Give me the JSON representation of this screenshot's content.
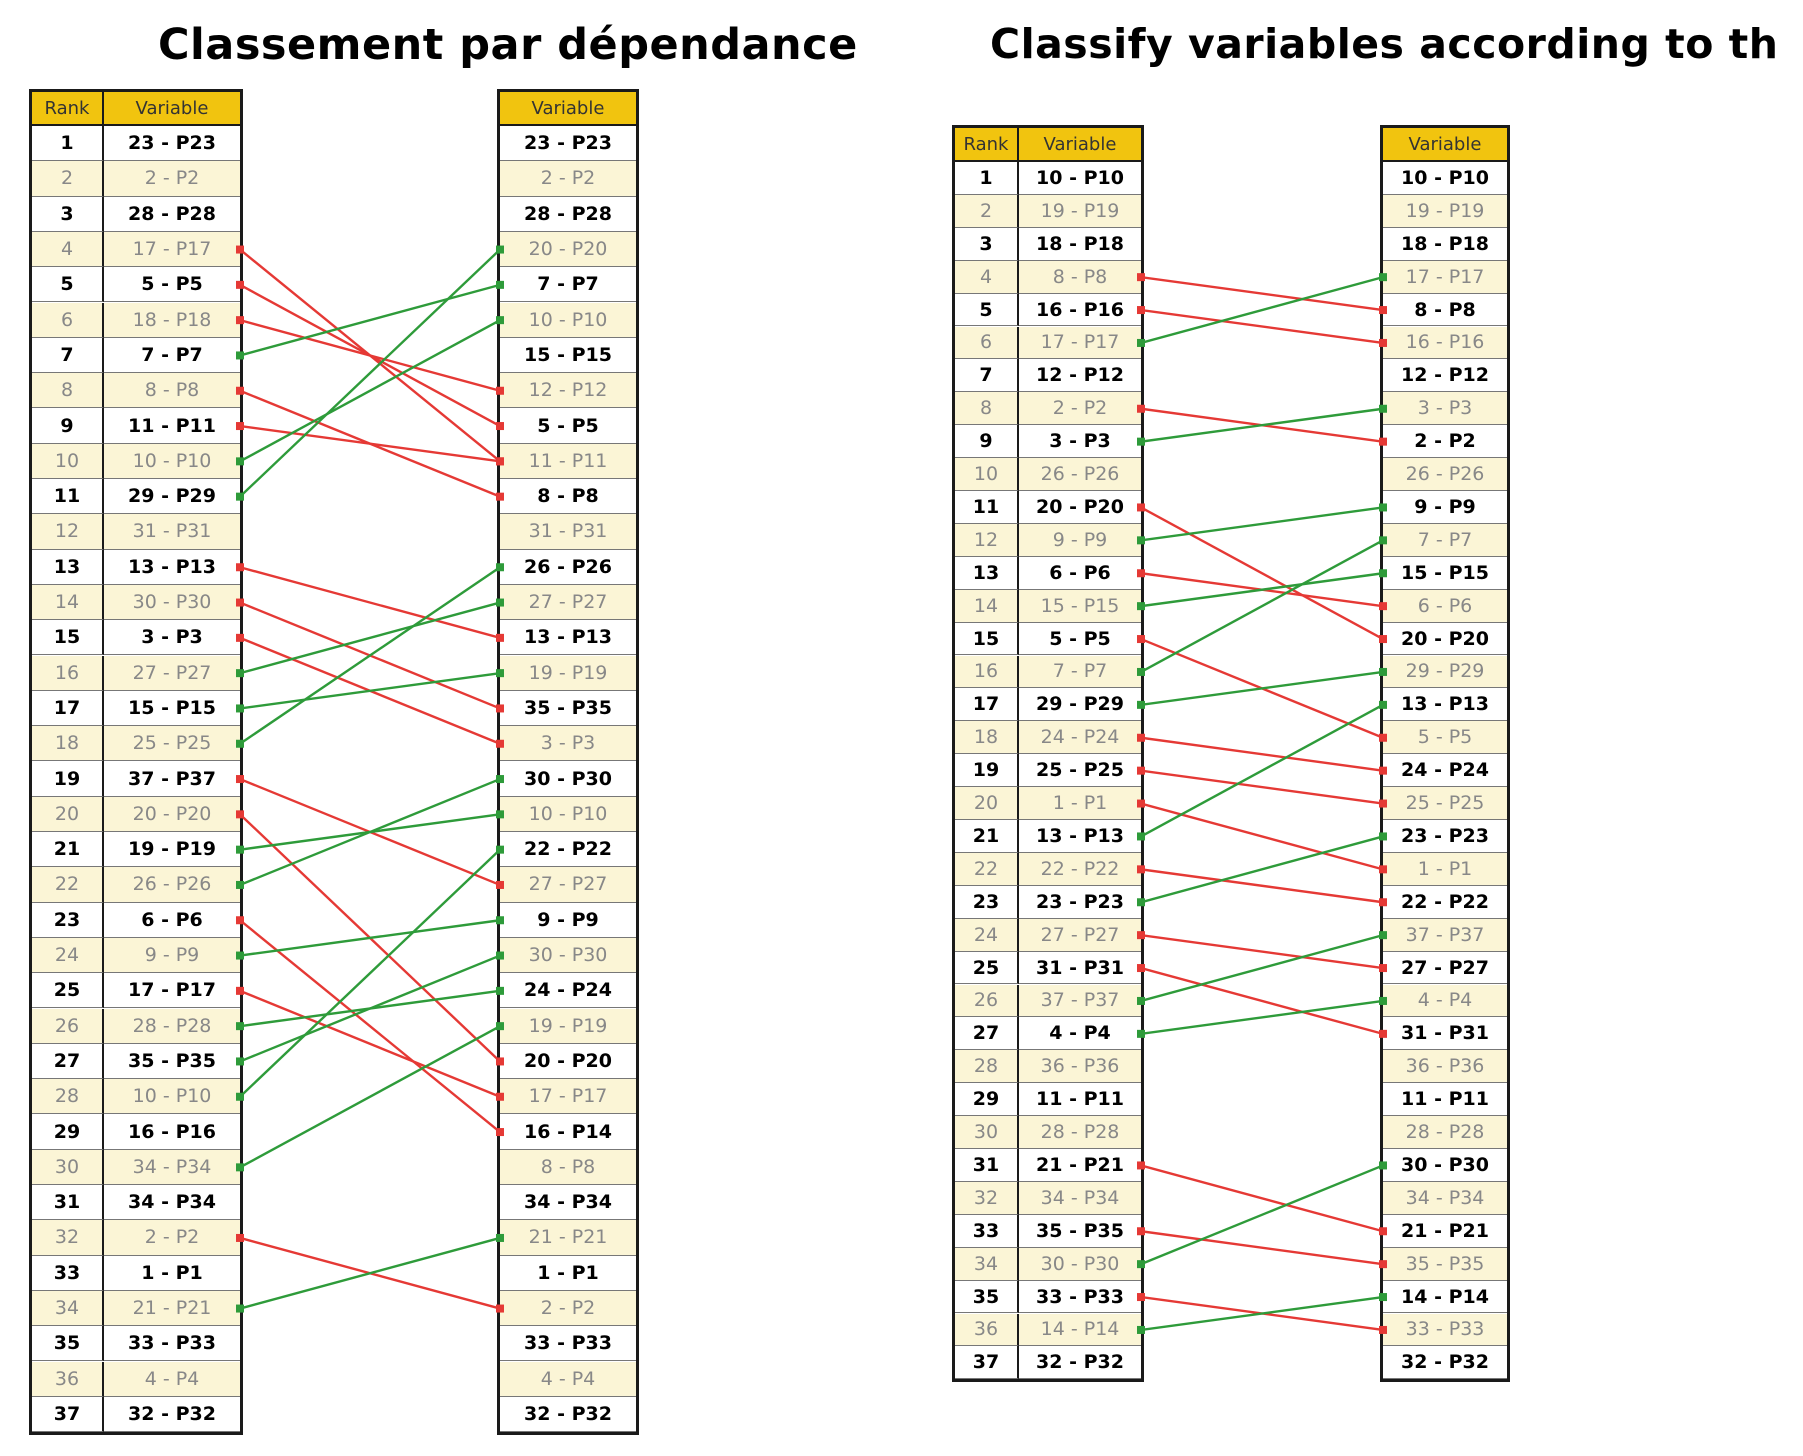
{
  "titles": {
    "left": "Classement par dépendance",
    "right": "Classify variables according to th"
  },
  "colors": {
    "header": "#f1c40f",
    "rising": "#2e9b3a",
    "falling": "#e53935"
  },
  "left_panel": {
    "rank_header": "Rank",
    "variable_header": "Variable",
    "right_variable_header": "Variable",
    "ranks": [
      "1",
      "2",
      "3",
      "4",
      "5",
      "6",
      "7",
      "8",
      "9",
      "10",
      "11",
      "12",
      "13",
      "14",
      "15",
      "16",
      "17",
      "18",
      "19",
      "20",
      "21",
      "22",
      "23",
      "24",
      "25",
      "26",
      "27",
      "28",
      "29",
      "30",
      "31",
      "32",
      "33",
      "34",
      "35",
      "36",
      "37"
    ],
    "variables": [
      "23 - P23",
      "2 - P2",
      "28 - P28",
      "17 - P17",
      "5 - P5",
      "18 - P18",
      "7 - P7",
      "8 - P8",
      "11 - P11",
      "10 - P10",
      "29 - P29",
      "31 - P31",
      "13 - P13",
      "30 - P30",
      "3 - P3",
      "27 - P27",
      "15 - P15",
      "25 - P25",
      "37 - P37",
      "20 - P20",
      "19 - P19",
      "26 - P26",
      "6 - P6",
      "9 - P9",
      "17 - P17",
      "28 - P28",
      "35 - P35",
      "10 - P10",
      "16 - P16",
      "34 - P34",
      "34 - P34",
      "2 - P2",
      "1 - P1",
      "21 - P21",
      "33 - P33",
      "4 - P4",
      "32 - P32"
    ],
    "ranked_variables": [
      "23 - P23",
      "2 - P2",
      "28 - P28",
      "20 - P20",
      "7 - P7",
      "10 - P10",
      "15 - P15",
      "12 - P12",
      "5 - P5",
      "11 - P11",
      "8 - P8",
      "31 - P31",
      "26 - P26",
      "27 - P27",
      "13 - P13",
      "19 - P19",
      "35 - P35",
      "3 - P3",
      "30 - P30",
      "10 - P10",
      "22 - P22",
      "27 - P27",
      "9 - P9",
      "30 - P30",
      "24 - P24",
      "19 - P19",
      "20 - P20",
      "17 - P17",
      "16 - P14",
      "8 - P8",
      "34 - P34",
      "21 - P21",
      "1 - P1",
      "2 - P2",
      "33 - P33",
      "4 - P4",
      "32 - P32"
    ],
    "links": [
      [
        4,
        10
      ],
      [
        5,
        9
      ],
      [
        6,
        8
      ],
      [
        7,
        5
      ],
      [
        8,
        11
      ],
      [
        9,
        10
      ],
      [
        10,
        6
      ],
      [
        11,
        4
      ],
      [
        13,
        15
      ],
      [
        14,
        17
      ],
      [
        15,
        18
      ],
      [
        16,
        14
      ],
      [
        17,
        16
      ],
      [
        18,
        13
      ],
      [
        19,
        22
      ],
      [
        20,
        27
      ],
      [
        21,
        20
      ],
      [
        22,
        19
      ],
      [
        23,
        29
      ],
      [
        24,
        23
      ],
      [
        25,
        28
      ],
      [
        26,
        25
      ],
      [
        27,
        24
      ],
      [
        28,
        21
      ],
      [
        30,
        26
      ],
      [
        32,
        34
      ],
      [
        34,
        32
      ]
    ]
  },
  "right_panel": {
    "rank_header": "Rank",
    "variable_header": "Variable",
    "right_variable_header": "Variable",
    "ranks": [
      "1",
      "2",
      "3",
      "4",
      "5",
      "6",
      "7",
      "8",
      "9",
      "10",
      "11",
      "12",
      "13",
      "14",
      "15",
      "16",
      "17",
      "18",
      "19",
      "20",
      "21",
      "22",
      "23",
      "24",
      "25",
      "26",
      "27",
      "28",
      "29",
      "30",
      "31",
      "32",
      "33",
      "34",
      "35",
      "36",
      "37"
    ],
    "variables": [
      "10 - P10",
      "19 - P19",
      "18 - P18",
      "8 - P8",
      "16 - P16",
      "17 - P17",
      "12 - P12",
      "2 - P2",
      "3 - P3",
      "26 - P26",
      "20 - P20",
      "9 - P9",
      "6 - P6",
      "15 - P15",
      "5 - P5",
      "7 - P7",
      "29 - P29",
      "24 - P24",
      "25 - P25",
      "1 - P1",
      "13 - P13",
      "22 - P22",
      "23 - P23",
      "27 - P27",
      "31 - P31",
      "37 - P37",
      "4 - P4",
      "36 - P36",
      "11 - P11",
      "28 - P28",
      "21 - P21",
      "34 - P34",
      "35 - P35",
      "30 - P30",
      "33 - P33",
      "14 - P14",
      "32 - P32"
    ],
    "ranked_variables": [
      "10 - P10",
      "19 - P19",
      "18 - P18",
      "17 - P17",
      "8 - P8",
      "16 - P16",
      "12 - P12",
      "3 - P3",
      "2 - P2",
      "26 - P26",
      "9 - P9",
      "7 - P7",
      "15 - P15",
      "6 - P6",
      "20 - P20",
      "29 - P29",
      "13 - P13",
      "5 - P5",
      "24 - P24",
      "25 - P25",
      "23 - P23",
      "1 - P1",
      "22 - P22",
      "37 - P37",
      "27 - P27",
      "4 - P4",
      "31 - P31",
      "36 - P36",
      "11 - P11",
      "28 - P28",
      "30 - P30",
      "34 - P34",
      "21 - P21",
      "35 - P35",
      "14 - P14",
      "33 - P33",
      "32 - P32"
    ],
    "links": [
      [
        4,
        5
      ],
      [
        5,
        6
      ],
      [
        6,
        4
      ],
      [
        8,
        9
      ],
      [
        9,
        8
      ],
      [
        11,
        15
      ],
      [
        12,
        11
      ],
      [
        13,
        14
      ],
      [
        14,
        13
      ],
      [
        15,
        18
      ],
      [
        16,
        12
      ],
      [
        17,
        16
      ],
      [
        18,
        19
      ],
      [
        19,
        20
      ],
      [
        20,
        22
      ],
      [
        21,
        17
      ],
      [
        22,
        23
      ],
      [
        23,
        21
      ],
      [
        24,
        25
      ],
      [
        25,
        27
      ],
      [
        26,
        24
      ],
      [
        27,
        26
      ],
      [
        31,
        33
      ],
      [
        33,
        34
      ],
      [
        34,
        31
      ],
      [
        35,
        36
      ],
      [
        36,
        35
      ]
    ]
  }
}
